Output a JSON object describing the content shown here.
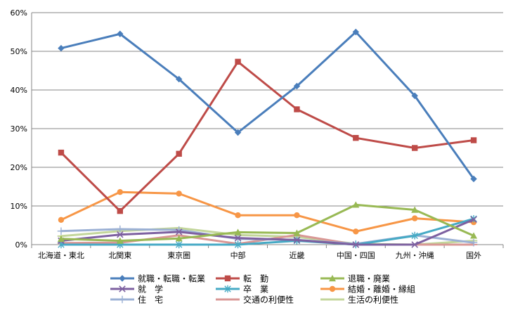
{
  "chart_data": {
    "type": "line",
    "categories": [
      "北海道・東北",
      "北関東",
      "東京圏",
      "中部",
      "近畿",
      "中国・四国",
      "九州・沖縄",
      "国外"
    ],
    "ylim": [
      0,
      60
    ],
    "yticks": [
      0,
      10,
      20,
      30,
      40,
      50,
      60
    ],
    "ytick_labels": [
      "0%",
      "10%",
      "20%",
      "30%",
      "40%",
      "50%",
      "60%"
    ],
    "grid": true,
    "legend_position": "bottom",
    "series": [
      {
        "name": "就職・転職・転業",
        "color": "#4a7ebb",
        "marker": "diamond",
        "values": [
          50.8,
          54.5,
          42.8,
          29.0,
          41.0,
          55.0,
          38.5,
          17.0
        ]
      },
      {
        "name": "転　勤",
        "color": "#be4b48",
        "marker": "square",
        "values": [
          23.8,
          8.7,
          23.5,
          47.3,
          35.0,
          27.6,
          25.0,
          27.0
        ]
      },
      {
        "name": "退職・廃業",
        "color": "#98b954",
        "marker": "triangle",
        "values": [
          1.5,
          1.0,
          1.6,
          3.2,
          3.0,
          10.3,
          9.0,
          2.3
        ]
      },
      {
        "name": "就　学",
        "color": "#7d60a0",
        "marker": "x",
        "values": [
          1.0,
          2.6,
          3.3,
          1.7,
          1.2,
          0.0,
          0.0,
          6.5
        ]
      },
      {
        "name": "卒　業",
        "color": "#46aac5",
        "marker": "star",
        "values": [
          0.0,
          0.0,
          0.0,
          0.0,
          1.0,
          0.0,
          2.3,
          6.7
        ]
      },
      {
        "name": "結婚・離婚・縁組",
        "color": "#f79646",
        "marker": "circle",
        "values": [
          6.4,
          13.6,
          13.2,
          7.6,
          7.6,
          3.4,
          6.8,
          5.8
        ]
      },
      {
        "name": "住　宅",
        "color": "#9bb0d4",
        "marker": "plus",
        "values": [
          3.5,
          4.0,
          3.8,
          1.5,
          1.2,
          0.2,
          2.4,
          0.5
        ]
      },
      {
        "name": "交通の利便性",
        "color": "#d99795",
        "marker": "dash",
        "values": [
          0.4,
          0.5,
          2.4,
          0.2,
          2.5,
          0.0,
          0.0,
          0.0
        ]
      },
      {
        "name": "生活の利便性",
        "color": "#c3d69b",
        "marker": "dash",
        "values": [
          2.2,
          3.5,
          4.3,
          2.5,
          2.0,
          0.2,
          0.0,
          1.0
        ]
      }
    ]
  }
}
